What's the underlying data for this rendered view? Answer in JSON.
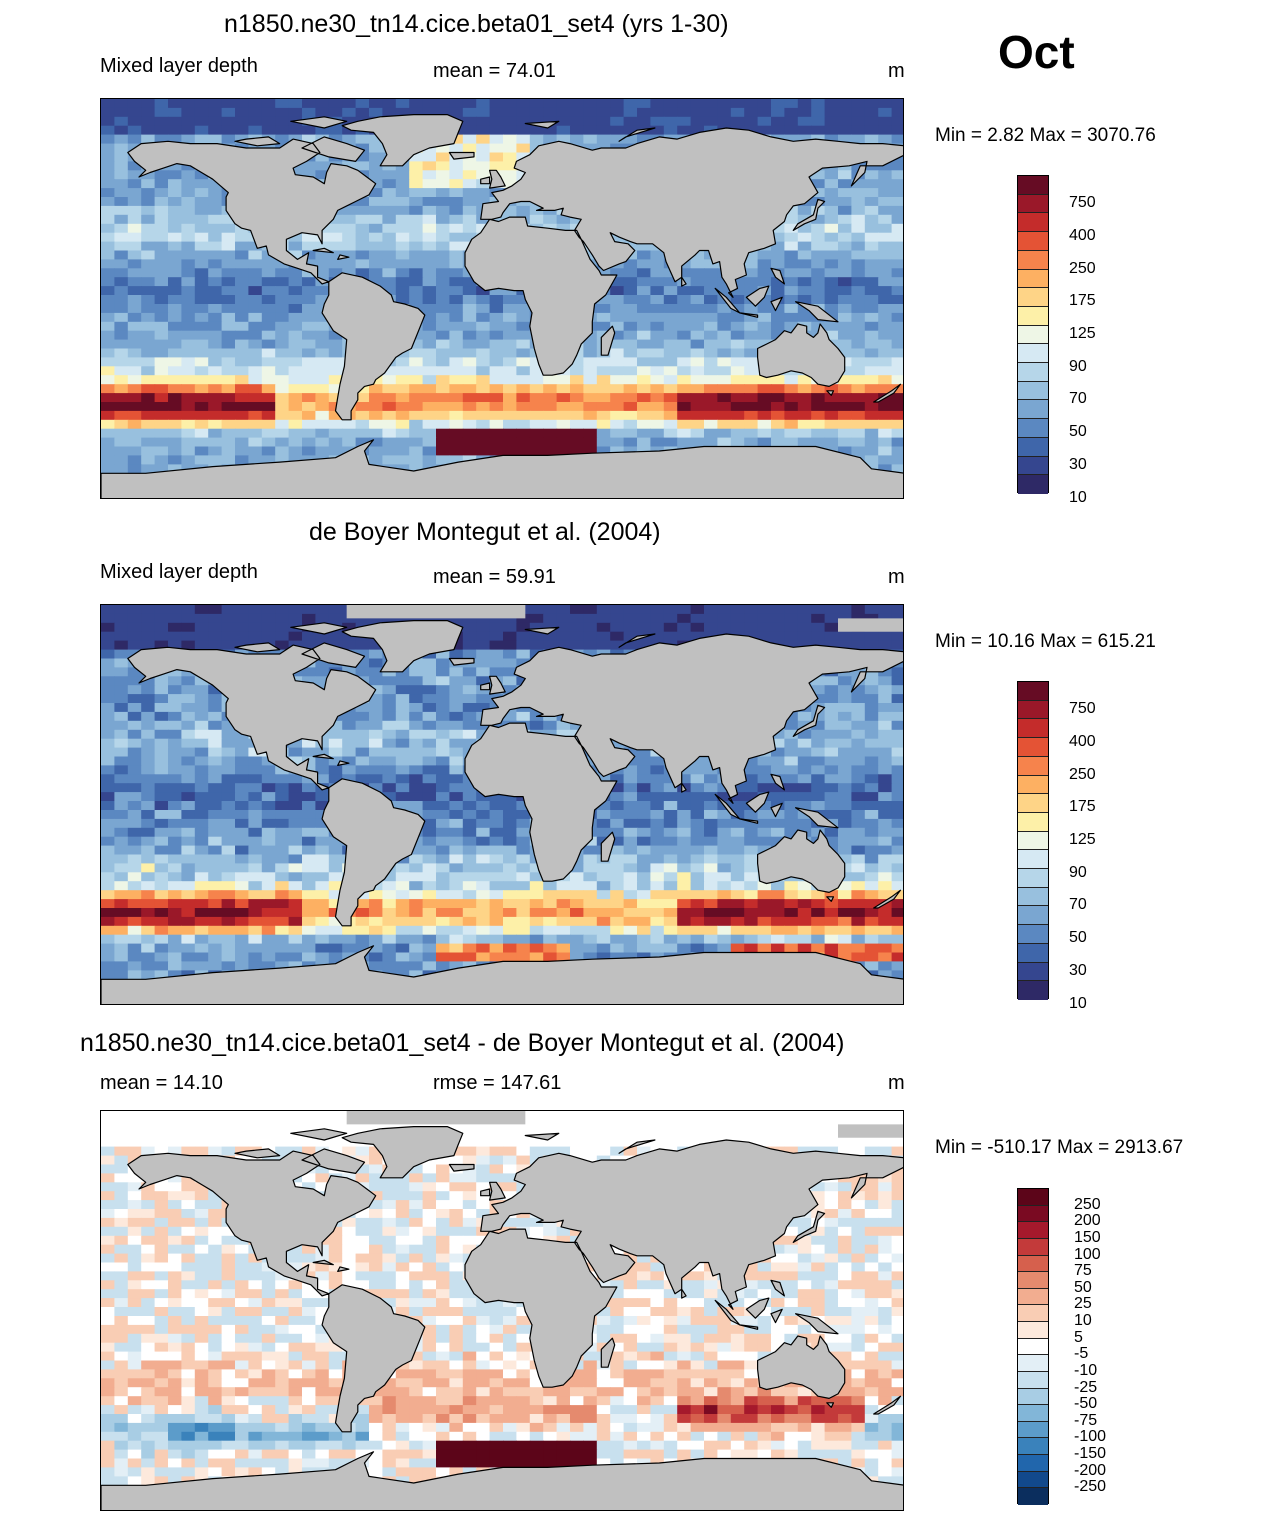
{
  "month": "Oct",
  "unit": "m",
  "panels": [
    {
      "title": "n1850.ne30_tn14.cice.beta01_set4 (yrs 1-30)",
      "left_label": "Mixed layer depth",
      "center_label": "mean =  74.01",
      "minmax": "Min =   2.82 Max = 3070.76",
      "colorbar": [
        "750",
        "400",
        "250",
        "175",
        "125",
        "90",
        "70",
        "50",
        "30",
        "10"
      ]
    },
    {
      "title": "de Boyer Montegut et al. (2004)",
      "left_label": "Mixed layer depth",
      "center_label": "mean =  59.91",
      "minmax": "Min =  10.16 Max = 615.21",
      "colorbar": [
        "750",
        "400",
        "250",
        "175",
        "125",
        "90",
        "70",
        "50",
        "30",
        "10"
      ]
    },
    {
      "title": "n1850.ne30_tn14.cice.beta01_set4 - de Boyer Montegut et al. (2004)",
      "left_label": "mean =  14.10",
      "center_label": "rmse = 147.61",
      "minmax": "Min = -510.17 Max = 2913.67",
      "colorbar": [
        "250",
        "200",
        "150",
        "100",
        "75",
        "50",
        "25",
        "10",
        "5",
        "-5",
        "-10",
        "-25",
        "-50",
        "-75",
        "-100",
        "-150",
        "-200",
        "-250"
      ]
    }
  ],
  "colors": {
    "mld_palette": [
      "#2e2966",
      "#35468f",
      "#3f66aa",
      "#5b88c1",
      "#7aa6d1",
      "#98c0de",
      "#b6d6e9",
      "#d6e9f3",
      "#eef6e6",
      "#fdf0a8",
      "#fed487",
      "#fdb062",
      "#f6834c",
      "#e45335",
      "#c42c2b",
      "#9a1829",
      "#660c24"
    ],
    "diff_palette": [
      "#0b2e5e",
      "#12498c",
      "#2166ac",
      "#3a82bb",
      "#5c9cca",
      "#82b6d8",
      "#a8cde4",
      "#c8e0ee",
      "#e3eff6",
      "#ffffff",
      "#fde9dc",
      "#f9cdb4",
      "#f2ad90",
      "#e58a6e",
      "#d6604d",
      "#c33a3a",
      "#a5192c",
      "#7a0a22",
      "#5c0519"
    ],
    "land": "#c0c0c0"
  }
}
